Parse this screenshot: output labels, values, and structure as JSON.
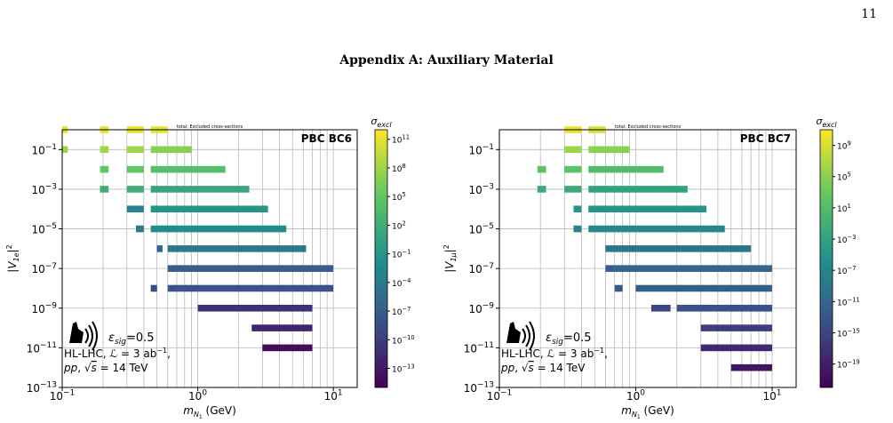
{
  "page": {
    "number": "11",
    "title": "Appendix A: Auxiliary Material"
  },
  "colors": {
    "viridis": [
      "#440154",
      "#3b528b",
      "#21918c",
      "#5ec962",
      "#fde725"
    ]
  },
  "chart_data": [
    {
      "type": "heatmap",
      "title": "total: Excluded cross-sections",
      "tag": "PBC BC6",
      "xlabel": "m_N1 (GeV)",
      "ylabel": "|V_1e|^2",
      "xscale": "log",
      "yscale": "log",
      "xlim": [
        0.1,
        15
      ],
      "ylim": [
        1e-13,
        1
      ],
      "xticks": [
        "10^-1",
        "10^0",
        "10^1"
      ],
      "yticks": [
        "10^-13",
        "10^-11",
        "10^-9",
        "10^-7",
        "10^-5",
        "10^-3",
        "10^-1"
      ],
      "colorbar": {
        "label": "σ_excl",
        "scale": "log",
        "ticks": [
          "10^11",
          "10^8",
          "10^5",
          "10^2",
          "10^-1",
          "10^-4",
          "10^-7",
          "10^-10",
          "10^-13"
        ],
        "range_exp": [
          -15,
          12
        ]
      },
      "annotation": {
        "eps": "ε_sig=0.5",
        "line1": "HL-LHC, L = 3 ab^-1,",
        "line2": "pp, √s = 14 TeV"
      },
      "rows": [
        {
          "y": 1,
          "segments": [
            [
              0.1,
              0.11,
              11
            ],
            [
              0.19,
              0.22,
              11
            ],
            [
              0.3,
              0.4,
              11
            ],
            [
              0.45,
              0.6,
              11
            ]
          ]
        },
        {
          "y": 0.1,
          "segments": [
            [
              0.1,
              0.11,
              8
            ],
            [
              0.19,
              0.22,
              8
            ],
            [
              0.3,
              0.4,
              8
            ],
            [
              0.45,
              0.9,
              7
            ]
          ]
        },
        {
          "y": 0.01,
          "segments": [
            [
              0.19,
              0.22,
              5
            ],
            [
              0.3,
              0.4,
              5
            ],
            [
              0.45,
              1.6,
              4
            ]
          ]
        },
        {
          "y": 0.001,
          "segments": [
            [
              0.19,
              0.22,
              2
            ],
            [
              0.3,
              0.4,
              2
            ],
            [
              0.45,
              2.4,
              1
            ]
          ]
        },
        {
          "y": 0.0001,
          "segments": [
            [
              0.3,
              0.4,
              -3
            ],
            [
              0.45,
              3.3,
              -1
            ]
          ]
        },
        {
          "y": 1e-05,
          "segments": [
            [
              0.35,
              0.4,
              -4
            ],
            [
              0.45,
              4.5,
              -2
            ]
          ]
        },
        {
          "y": 1e-06,
          "segments": [
            [
              0.5,
              0.55,
              -6
            ],
            [
              0.6,
              6.3,
              -4
            ]
          ]
        },
        {
          "y": 1e-07,
          "segments": [
            [
              0.6,
              10,
              -7
            ]
          ]
        },
        {
          "y": 1e-08,
          "segments": [
            [
              0.45,
              0.5,
              -9
            ],
            [
              0.6,
              10,
              -8
            ]
          ]
        },
        {
          "y": 1e-09,
          "segments": [
            [
              1,
              7,
              -11
            ]
          ]
        },
        {
          "y": 1e-10,
          "segments": [
            [
              2.5,
              7,
              -12
            ]
          ]
        },
        {
          "y": 1e-11,
          "segments": [
            [
              3,
              7,
              -14
            ]
          ]
        }
      ]
    },
    {
      "type": "heatmap",
      "title": "total: Excluded cross-sections",
      "tag": "PBC BC7",
      "xlabel": "m_N1 (GeV)",
      "ylabel": "|V_1μ|^2",
      "xscale": "log",
      "yscale": "log",
      "xlim": [
        0.1,
        15
      ],
      "ylim": [
        1e-13,
        1
      ],
      "xticks": [
        "10^-1",
        "10^0",
        "10^1"
      ],
      "yticks": [
        "10^-13",
        "10^-11",
        "10^-9",
        "10^-7",
        "10^-5",
        "10^-3",
        "10^-1"
      ],
      "colorbar": {
        "label": "σ_excl",
        "scale": "log",
        "ticks": [
          "10^9",
          "10^5",
          "10^1",
          "10^-3",
          "10^-7",
          "10^-11",
          "10^-15",
          "10^-19"
        ],
        "range_exp": [
          -22,
          11
        ]
      },
      "annotation": {
        "eps": "ε_sig=0.5",
        "line1": "HL-LHC, L = 3 ab^-1,",
        "line2": "pp, √s = 14 TeV"
      },
      "rows": [
        {
          "y": 1,
          "segments": [
            [
              0.3,
              0.4,
              10
            ],
            [
              0.45,
              0.6,
              9
            ]
          ]
        },
        {
          "y": 0.1,
          "segments": [
            [
              0.3,
              0.4,
              6
            ],
            [
              0.45,
              0.9,
              5
            ]
          ]
        },
        {
          "y": 0.01,
          "segments": [
            [
              0.19,
              0.22,
              2
            ],
            [
              0.3,
              0.4,
              2
            ],
            [
              0.45,
              1.6,
              1
            ]
          ]
        },
        {
          "y": 0.001,
          "segments": [
            [
              0.19,
              0.22,
              -2
            ],
            [
              0.3,
              0.4,
              -2
            ],
            [
              0.45,
              2.4,
              -3
            ]
          ]
        },
        {
          "y": 0.0001,
          "segments": [
            [
              0.35,
              0.4,
              -5
            ],
            [
              0.45,
              3.3,
              -5
            ]
          ]
        },
        {
          "y": 1e-05,
          "segments": [
            [
              0.35,
              0.4,
              -7
            ],
            [
              0.45,
              4.5,
              -7
            ]
          ]
        },
        {
          "y": 1e-06,
          "segments": [
            [
              0.6,
              7,
              -9
            ]
          ]
        },
        {
          "y": 1e-07,
          "segments": [
            [
              0.6,
              0.7,
              -12
            ],
            [
              0.7,
              10,
              -11
            ]
          ]
        },
        {
          "y": 1e-08,
          "segments": [
            [
              0.7,
              0.8,
              -13
            ],
            [
              1,
              10,
              -12
            ]
          ]
        },
        {
          "y": 1e-09,
          "segments": [
            [
              1.3,
              1.8,
              -15
            ],
            [
              2,
              10,
              -14
            ]
          ]
        },
        {
          "y": 1e-10,
          "segments": [
            [
              3,
              10,
              -16
            ]
          ]
        },
        {
          "y": 1e-11,
          "segments": [
            [
              3,
              10,
              -18
            ]
          ]
        },
        {
          "y": 1e-12,
          "segments": [
            [
              5,
              10,
              -20
            ]
          ]
        }
      ]
    }
  ]
}
